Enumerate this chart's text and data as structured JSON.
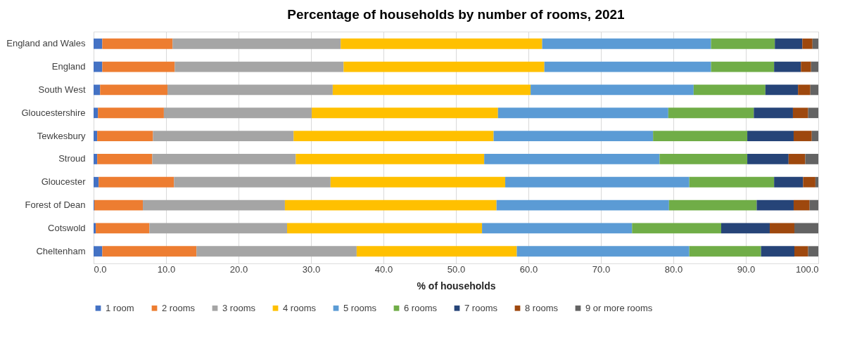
{
  "chart_data": {
    "type": "bar",
    "orientation": "horizontal",
    "stacked": true,
    "title": "Percentage of households  by number of rooms, 2021",
    "xlabel": "% of households",
    "categories": [
      "England and Wales",
      "England",
      "South West",
      "Gloucestershire",
      "Tewkesbury",
      "Stroud",
      "Gloucester",
      "Forest of Dean",
      "Cotswold",
      "Cheltenham"
    ],
    "series": [
      {
        "name": "1 room",
        "color": "#4472c4",
        "values": [
          1.2,
          1.2,
          0.9,
          0.6,
          0.5,
          0.5,
          0.7,
          0.1,
          0.3,
          1.2
        ]
      },
      {
        "name": "2 rooms",
        "color": "#ed7d31",
        "values": [
          9.7,
          10.0,
          9.3,
          9.1,
          7.7,
          7.6,
          10.4,
          6.7,
          7.4,
          13.0
        ]
      },
      {
        "name": "3 rooms",
        "color": "#a5a5a5",
        "values": [
          23.2,
          23.3,
          22.8,
          20.4,
          19.4,
          19.8,
          21.6,
          19.6,
          19.0,
          22.1
        ]
      },
      {
        "name": "4 rooms",
        "color": "#ffc000",
        "values": [
          27.8,
          27.7,
          27.3,
          25.7,
          27.6,
          26.0,
          24.1,
          29.2,
          26.9,
          22.1
        ]
      },
      {
        "name": "5 rooms",
        "color": "#5b9bd5",
        "values": [
          23.3,
          23.0,
          22.5,
          23.5,
          22.0,
          24.2,
          25.4,
          23.8,
          20.7,
          23.8
        ]
      },
      {
        "name": "6 rooms",
        "color": "#70ad47",
        "values": [
          8.8,
          8.7,
          9.9,
          11.8,
          13.0,
          12.1,
          11.7,
          12.1,
          12.3,
          9.9
        ]
      },
      {
        "name": "7 rooms",
        "color": "#264478",
        "values": [
          3.8,
          3.7,
          4.5,
          5.4,
          6.4,
          5.7,
          4.0,
          5.1,
          6.7,
          4.6
        ]
      },
      {
        "name": "8 rooms",
        "color": "#9e480e",
        "values": [
          1.4,
          1.4,
          1.7,
          2.1,
          2.5,
          2.3,
          1.7,
          2.2,
          3.4,
          1.9
        ]
      },
      {
        "name": "9 or more rooms",
        "color": "#636363",
        "values": [
          0.8,
          1.0,
          1.1,
          1.4,
          0.9,
          1.8,
          0.4,
          1.2,
          3.3,
          1.4
        ]
      }
    ],
    "xlim": [
      0,
      100
    ],
    "xticks": [
      {
        "value": 0,
        "label": "0.0"
      },
      {
        "value": 10,
        "label": "10.0"
      },
      {
        "value": 20,
        "label": "20.0"
      },
      {
        "value": 30,
        "label": "30.0"
      },
      {
        "value": 40,
        "label": "40.0"
      },
      {
        "value": 50,
        "label": "50.0"
      },
      {
        "value": 60,
        "label": "60.0"
      },
      {
        "value": 70,
        "label": "70.0"
      },
      {
        "value": 80,
        "label": "80.0"
      },
      {
        "value": 90,
        "label": "90.0"
      },
      {
        "value": 100,
        "label": "100.0"
      }
    ],
    "grid": "x",
    "legend": "bottom"
  }
}
